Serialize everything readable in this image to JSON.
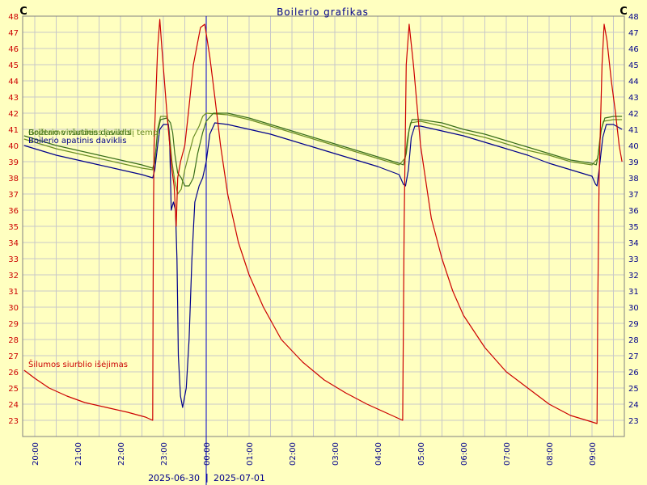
{
  "chart_data": {
    "type": "line",
    "title": "Boilerio grafikas",
    "unit_left": "C",
    "unit_right": "C",
    "ylim": [
      22,
      48
    ],
    "y_ticks": [
      23,
      24,
      25,
      26,
      27,
      28,
      29,
      30,
      31,
      32,
      33,
      34,
      35,
      36,
      37,
      38,
      39,
      40,
      41,
      42,
      43,
      44,
      45,
      46,
      47,
      48
    ],
    "xlim": [
      "2025-06-30 19:45",
      "2025-07-01 09:50"
    ],
    "x_ticks": [
      "20:00",
      "21:00",
      "22:00",
      "23:00",
      "00:00",
      "01:00",
      "02:00",
      "03:00",
      "04:00",
      "05:00",
      "06:00",
      "07:00",
      "08:00",
      "09:00"
    ],
    "date_labels": {
      "left": "2025-06-30",
      "separator": "|",
      "right": "2025-07-01"
    },
    "day_boundary": "00:00",
    "grid": true,
    "series": [
      {
        "name": "Šilumos siurblio išėjimas",
        "color": "#cc0000",
        "points": [
          [
            "19:45",
            26.1
          ],
          [
            "20:00",
            25.6
          ],
          [
            "20:20",
            25.0
          ],
          [
            "20:45",
            24.5
          ],
          [
            "21:10",
            24.1
          ],
          [
            "21:40",
            23.8
          ],
          [
            "22:10",
            23.5
          ],
          [
            "22:35",
            23.2
          ],
          [
            "22:45",
            23.0
          ],
          [
            "22:46",
            35.0
          ],
          [
            "22:47",
            40.0
          ],
          [
            "22:52",
            46.0
          ],
          [
            "22:55",
            47.8
          ],
          [
            "22:58",
            46.0
          ],
          [
            "23:05",
            42.0
          ],
          [
            "23:12",
            38.5
          ],
          [
            "23:15",
            37.5
          ],
          [
            "23:18",
            35.0
          ],
          [
            "23:20",
            38.0
          ],
          [
            "23:24",
            39.0
          ],
          [
            "23:30",
            40.0
          ],
          [
            "23:35",
            42.0
          ],
          [
            "23:42",
            45.0
          ],
          [
            "23:52",
            47.3
          ],
          [
            "23:58",
            47.5
          ],
          [
            "00:05",
            45.5
          ],
          [
            "00:12",
            43.0
          ],
          [
            "00:20",
            40.0
          ],
          [
            "00:30",
            37.0
          ],
          [
            "00:45",
            34.0
          ],
          [
            "01:00",
            32.0
          ],
          [
            "01:20",
            30.0
          ],
          [
            "01:45",
            28.0
          ],
          [
            "02:15",
            26.6
          ],
          [
            "02:45",
            25.5
          ],
          [
            "03:15",
            24.7
          ],
          [
            "03:45",
            24.0
          ],
          [
            "04:15",
            23.4
          ],
          [
            "04:35",
            23.0
          ],
          [
            "04:37",
            35.0
          ],
          [
            "04:40",
            45.0
          ],
          [
            "04:44",
            47.5
          ],
          [
            "04:50",
            45.0
          ],
          [
            "05:00",
            40.0
          ],
          [
            "05:15",
            35.5
          ],
          [
            "05:30",
            33.0
          ],
          [
            "05:45",
            31.0
          ],
          [
            "06:00",
            29.5
          ],
          [
            "06:30",
            27.5
          ],
          [
            "07:00",
            26.0
          ],
          [
            "07:30",
            25.0
          ],
          [
            "08:00",
            24.0
          ],
          [
            "08:30",
            23.3
          ],
          [
            "09:00",
            22.9
          ],
          [
            "09:07",
            22.8
          ],
          [
            "09:08",
            30.0
          ],
          [
            "09:10",
            38.0
          ],
          [
            "09:14",
            45.0
          ],
          [
            "09:17",
            47.5
          ],
          [
            "09:21",
            46.5
          ],
          [
            "09:27",
            44.0
          ],
          [
            "09:33",
            42.0
          ],
          [
            "09:38",
            40.0
          ],
          [
            "09:42",
            39.0
          ]
        ]
      },
      {
        "name": "Boilerio apatinis daviklis",
        "color": "#00008b",
        "points": [
          [
            "19:45",
            40.0
          ],
          [
            "20:00",
            39.8
          ],
          [
            "20:30",
            39.4
          ],
          [
            "21:00",
            39.1
          ],
          [
            "21:30",
            38.8
          ],
          [
            "22:00",
            38.5
          ],
          [
            "22:30",
            38.2
          ],
          [
            "22:45",
            38.0
          ],
          [
            "22:48",
            38.5
          ],
          [
            "22:52",
            40.0
          ],
          [
            "22:55",
            41.0
          ],
          [
            "23:00",
            41.3
          ],
          [
            "23:07",
            41.3
          ],
          [
            "23:09",
            40.0
          ],
          [
            "23:10",
            38.0
          ],
          [
            "23:11",
            36.0
          ],
          [
            "23:14",
            36.5
          ],
          [
            "23:17",
            36.0
          ],
          [
            "23:19",
            33.0
          ],
          [
            "23:20",
            30.0
          ],
          [
            "23:21",
            27.0
          ],
          [
            "23:24",
            24.5
          ],
          [
            "23:27",
            23.8
          ],
          [
            "23:32",
            25.0
          ],
          [
            "23:36",
            28.0
          ],
          [
            "23:40",
            33.0
          ],
          [
            "23:44",
            36.5
          ],
          [
            "23:50",
            37.5
          ],
          [
            "23:55",
            38.0
          ],
          [
            "00:00",
            39.0
          ],
          [
            "00:05",
            40.7
          ],
          [
            "00:12",
            41.4
          ],
          [
            "00:30",
            41.3
          ],
          [
            "01:00",
            41.0
          ],
          [
            "01:30",
            40.7
          ],
          [
            "02:00",
            40.3
          ],
          [
            "02:30",
            39.9
          ],
          [
            "03:00",
            39.5
          ],
          [
            "03:30",
            39.1
          ],
          [
            "04:00",
            38.7
          ],
          [
            "04:30",
            38.2
          ],
          [
            "04:36",
            37.6
          ],
          [
            "04:39",
            37.5
          ],
          [
            "04:43",
            38.5
          ],
          [
            "04:47",
            40.5
          ],
          [
            "04:52",
            41.2
          ],
          [
            "05:00",
            41.2
          ],
          [
            "05:30",
            40.9
          ],
          [
            "06:00",
            40.6
          ],
          [
            "06:30",
            40.2
          ],
          [
            "07:00",
            39.8
          ],
          [
            "07:30",
            39.4
          ],
          [
            "08:00",
            38.9
          ],
          [
            "08:30",
            38.5
          ],
          [
            "09:00",
            38.1
          ],
          [
            "09:05",
            37.6
          ],
          [
            "09:07",
            37.5
          ],
          [
            "09:10",
            38.5
          ],
          [
            "09:15",
            40.5
          ],
          [
            "09:20",
            41.3
          ],
          [
            "09:30",
            41.3
          ],
          [
            "09:42",
            41.0
          ]
        ]
      },
      {
        "name": "Boilerio viršutinis daviklis",
        "color": "#3a6f1a",
        "points": [
          [
            "19:45",
            40.6
          ],
          [
            "20:00",
            40.4
          ],
          [
            "20:30",
            40.0
          ],
          [
            "21:00",
            39.7
          ],
          [
            "21:30",
            39.4
          ],
          [
            "22:00",
            39.1
          ],
          [
            "22:30",
            38.8
          ],
          [
            "22:45",
            38.6
          ],
          [
            "22:48",
            39.0
          ],
          [
            "22:52",
            40.8
          ],
          [
            "22:56",
            41.6
          ],
          [
            "23:05",
            41.7
          ],
          [
            "23:10",
            41.4
          ],
          [
            "23:13",
            40.8
          ],
          [
            "23:16",
            39.5
          ],
          [
            "23:20",
            38.3
          ],
          [
            "23:25",
            38.0
          ],
          [
            "23:30",
            37.5
          ],
          [
            "23:36",
            37.5
          ],
          [
            "23:42",
            38.0
          ],
          [
            "23:48",
            39.5
          ],
          [
            "23:55",
            40.8
          ],
          [
            "00:00",
            41.5
          ],
          [
            "00:10",
            42.0
          ],
          [
            "00:30",
            42.0
          ],
          [
            "01:00",
            41.7
          ],
          [
            "01:30",
            41.3
          ],
          [
            "02:00",
            40.9
          ],
          [
            "02:30",
            40.5
          ],
          [
            "03:00",
            40.1
          ],
          [
            "03:30",
            39.7
          ],
          [
            "04:00",
            39.3
          ],
          [
            "04:30",
            38.9
          ],
          [
            "04:36",
            38.8
          ],
          [
            "04:40",
            39.5
          ],
          [
            "04:44",
            41.0
          ],
          [
            "04:48",
            41.6
          ],
          [
            "05:00",
            41.6
          ],
          [
            "05:30",
            41.4
          ],
          [
            "06:00",
            41.0
          ],
          [
            "06:30",
            40.7
          ],
          [
            "07:00",
            40.3
          ],
          [
            "07:30",
            39.9
          ],
          [
            "08:00",
            39.5
          ],
          [
            "08:30",
            39.1
          ],
          [
            "09:00",
            38.9
          ],
          [
            "09:06",
            38.8
          ],
          [
            "09:09",
            39.5
          ],
          [
            "09:13",
            41.0
          ],
          [
            "09:18",
            41.7
          ],
          [
            "09:30",
            41.8
          ],
          [
            "09:42",
            41.8
          ]
        ]
      },
      {
        "name": "Grįžtamo vandens į siurblį temp.",
        "color": "#6b8e23",
        "points": [
          [
            "19:45",
            40.4
          ],
          [
            "20:00",
            40.2
          ],
          [
            "20:30",
            39.8
          ],
          [
            "21:00",
            39.5
          ],
          [
            "21:30",
            39.2
          ],
          [
            "22:00",
            38.9
          ],
          [
            "22:30",
            38.6
          ],
          [
            "22:45",
            38.5
          ],
          [
            "22:48",
            39.0
          ],
          [
            "22:52",
            41.0
          ],
          [
            "22:56",
            41.8
          ],
          [
            "23:05",
            41.8
          ],
          [
            "23:08",
            41.0
          ],
          [
            "23:12",
            39.0
          ],
          [
            "23:16",
            37.8
          ],
          [
            "23:20",
            37.0
          ],
          [
            "23:25",
            37.3
          ],
          [
            "23:30",
            38.5
          ],
          [
            "23:36",
            39.5
          ],
          [
            "23:42",
            40.5
          ],
          [
            "23:50",
            41.2
          ],
          [
            "23:55",
            41.8
          ],
          [
            "00:00",
            42.0
          ],
          [
            "00:30",
            41.9
          ],
          [
            "01:00",
            41.6
          ],
          [
            "01:30",
            41.2
          ],
          [
            "02:00",
            40.8
          ],
          [
            "02:30",
            40.4
          ],
          [
            "03:00",
            40.0
          ],
          [
            "03:30",
            39.6
          ],
          [
            "04:00",
            39.2
          ],
          [
            "04:30",
            38.8
          ],
          [
            "04:38",
            39.2
          ],
          [
            "04:42",
            40.5
          ],
          [
            "04:46",
            41.4
          ],
          [
            "05:00",
            41.5
          ],
          [
            "05:30",
            41.2
          ],
          [
            "06:00",
            40.8
          ],
          [
            "06:30",
            40.5
          ],
          [
            "07:00",
            40.1
          ],
          [
            "07:30",
            39.7
          ],
          [
            "08:00",
            39.4
          ],
          [
            "08:30",
            39.0
          ],
          [
            "09:00",
            38.8
          ],
          [
            "09:08",
            39.2
          ],
          [
            "09:12",
            40.8
          ],
          [
            "09:16",
            41.5
          ],
          [
            "09:30",
            41.6
          ],
          [
            "09:42",
            41.6
          ]
        ]
      }
    ],
    "legend_labels": [
      {
        "series": 0,
        "text": "Šilumos siurblio išėjimas",
        "color": "#cc0000"
      },
      {
        "series": 3,
        "text": "Grįžtamo vandens į siurblį temp.",
        "color": "#6b8e23"
      },
      {
        "series": 2,
        "text": "Boilerio viršutinis daviklis",
        "color": "#3a6f1a"
      },
      {
        "series": 1,
        "text": "Boilerio apatinis daviklis",
        "color": "#00008b"
      }
    ],
    "colors": {
      "background": "#ffffc0",
      "grid": "#c8c8c8",
      "frame": "#808080",
      "left_tick_labels": "#cc0000",
      "right_tick_labels": "#00008b",
      "x_tick_labels": "#00008b",
      "title": "#00008b",
      "day_line": "#0000cc"
    }
  }
}
